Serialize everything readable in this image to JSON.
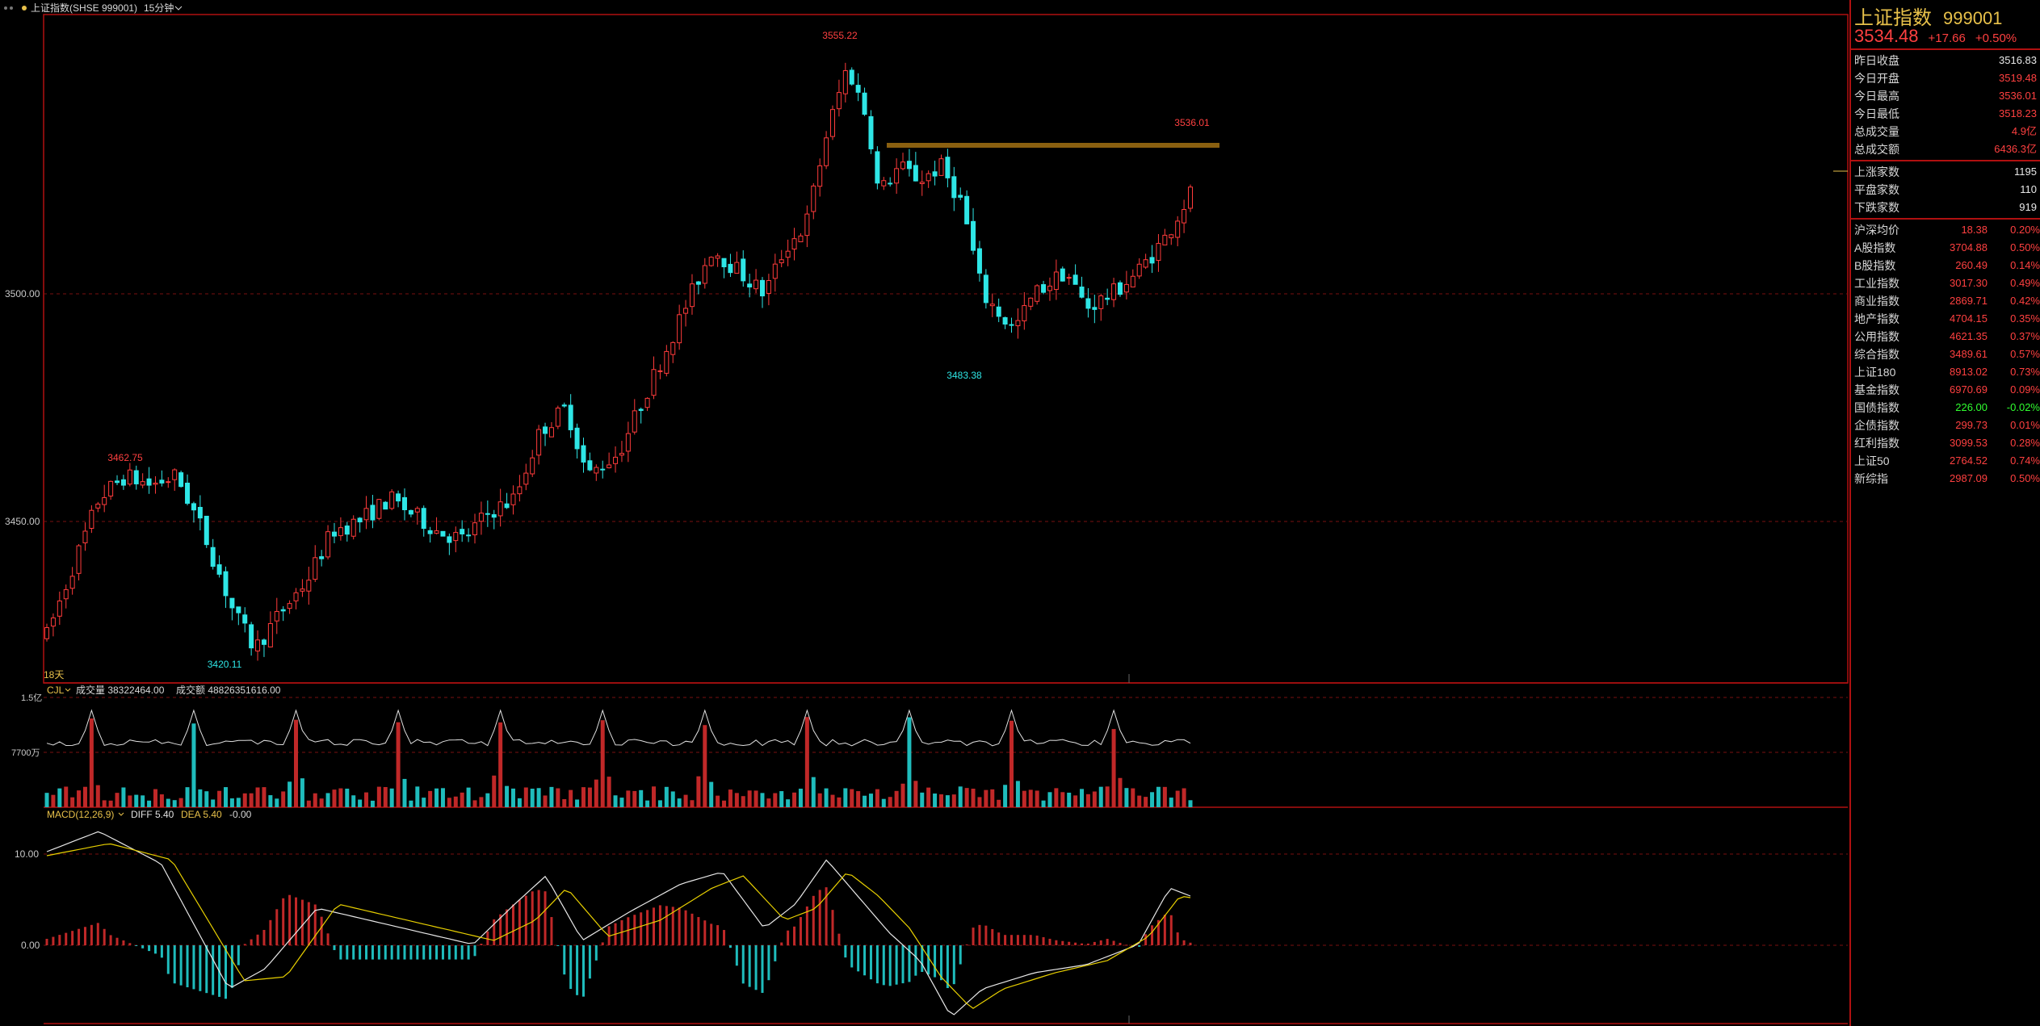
{
  "header": {
    "title": "上证指数(SHSE 999001)",
    "period": "15分钟"
  },
  "colors": {
    "up": "#ff3b3b",
    "down": "#2ee6e6",
    "accent": "#e8c14a",
    "panel_border": "#b01010",
    "resistance": "#8a6010"
  },
  "main_chart": {
    "price_labels": [
      "3500.00",
      "3450.00"
    ],
    "annotations": {
      "high": "3555.22",
      "low1": "3420.11",
      "low2": "3483.38",
      "high2": "3462.75",
      "last_high": "3536.01"
    },
    "period_badge": "18天"
  },
  "volume_panel": {
    "indicator": "CJL",
    "vol_label": "成交量 38322464.00",
    "amt_label": "成交额 48826351616.00",
    "axis_labels": [
      "1.5亿",
      "7700万"
    ]
  },
  "macd_panel": {
    "name": "MACD(12,26,9)",
    "diff": "DIFF 5.40",
    "dea": "DEA 5.40",
    "macd": "-0.00",
    "axis_labels": [
      "10.00",
      "0.00"
    ]
  },
  "side_panel": {
    "name": "上证指数",
    "code": "999001",
    "last": "3534.48",
    "change": "+17.66",
    "pct": "+0.50%",
    "stats": [
      {
        "label": "昨日收盘",
        "value": "3516.83",
        "color": "white"
      },
      {
        "label": "今日开盘",
        "value": "3519.48",
        "color": "red"
      },
      {
        "label": "今日最高",
        "value": "3536.01",
        "color": "red"
      },
      {
        "label": "今日最低",
        "value": "3518.23",
        "color": "red"
      },
      {
        "label": "总成交量",
        "value": "4.9亿",
        "color": "red"
      },
      {
        "label": "总成交额",
        "value": "6436.3亿",
        "color": "red"
      }
    ],
    "breadth": [
      {
        "label": "上涨家数",
        "value": "1195"
      },
      {
        "label": "平盘家数",
        "value": "110"
      },
      {
        "label": "下跌家数",
        "value": "919"
      }
    ],
    "indices": [
      {
        "label": "沪深均价",
        "v1": "18.38",
        "v2": "0.20%",
        "color": "red"
      },
      {
        "label": "A股指数",
        "v1": "3704.88",
        "v2": "0.50%",
        "color": "red"
      },
      {
        "label": "B股指数",
        "v1": "260.49",
        "v2": "0.14%",
        "color": "red"
      },
      {
        "label": "工业指数",
        "v1": "3017.30",
        "v2": "0.49%",
        "color": "red"
      },
      {
        "label": "商业指数",
        "v1": "2869.71",
        "v2": "0.42%",
        "color": "red"
      },
      {
        "label": "地产指数",
        "v1": "4704.15",
        "v2": "0.35%",
        "color": "red"
      },
      {
        "label": "公用指数",
        "v1": "4621.35",
        "v2": "0.37%",
        "color": "red"
      },
      {
        "label": "综合指数",
        "v1": "3489.61",
        "v2": "0.57%",
        "color": "red"
      },
      {
        "label": "上证180",
        "v1": "8913.02",
        "v2": "0.73%",
        "color": "red"
      },
      {
        "label": "基金指数",
        "v1": "6970.69",
        "v2": "0.09%",
        "color": "red"
      },
      {
        "label": "国债指数",
        "v1": "226.00",
        "v2": "-0.02%",
        "color": "green"
      },
      {
        "label": "企债指数",
        "v1": "299.73",
        "v2": "0.01%",
        "color": "red"
      },
      {
        "label": "红利指数",
        "v1": "3099.53",
        "v2": "0.28%",
        "color": "red"
      },
      {
        "label": "上证50",
        "v1": "2764.52",
        "v2": "0.74%",
        "color": "red"
      },
      {
        "label": "新综指",
        "v1": "2987.09",
        "v2": "0.50%",
        "color": "red"
      }
    ]
  }
}
